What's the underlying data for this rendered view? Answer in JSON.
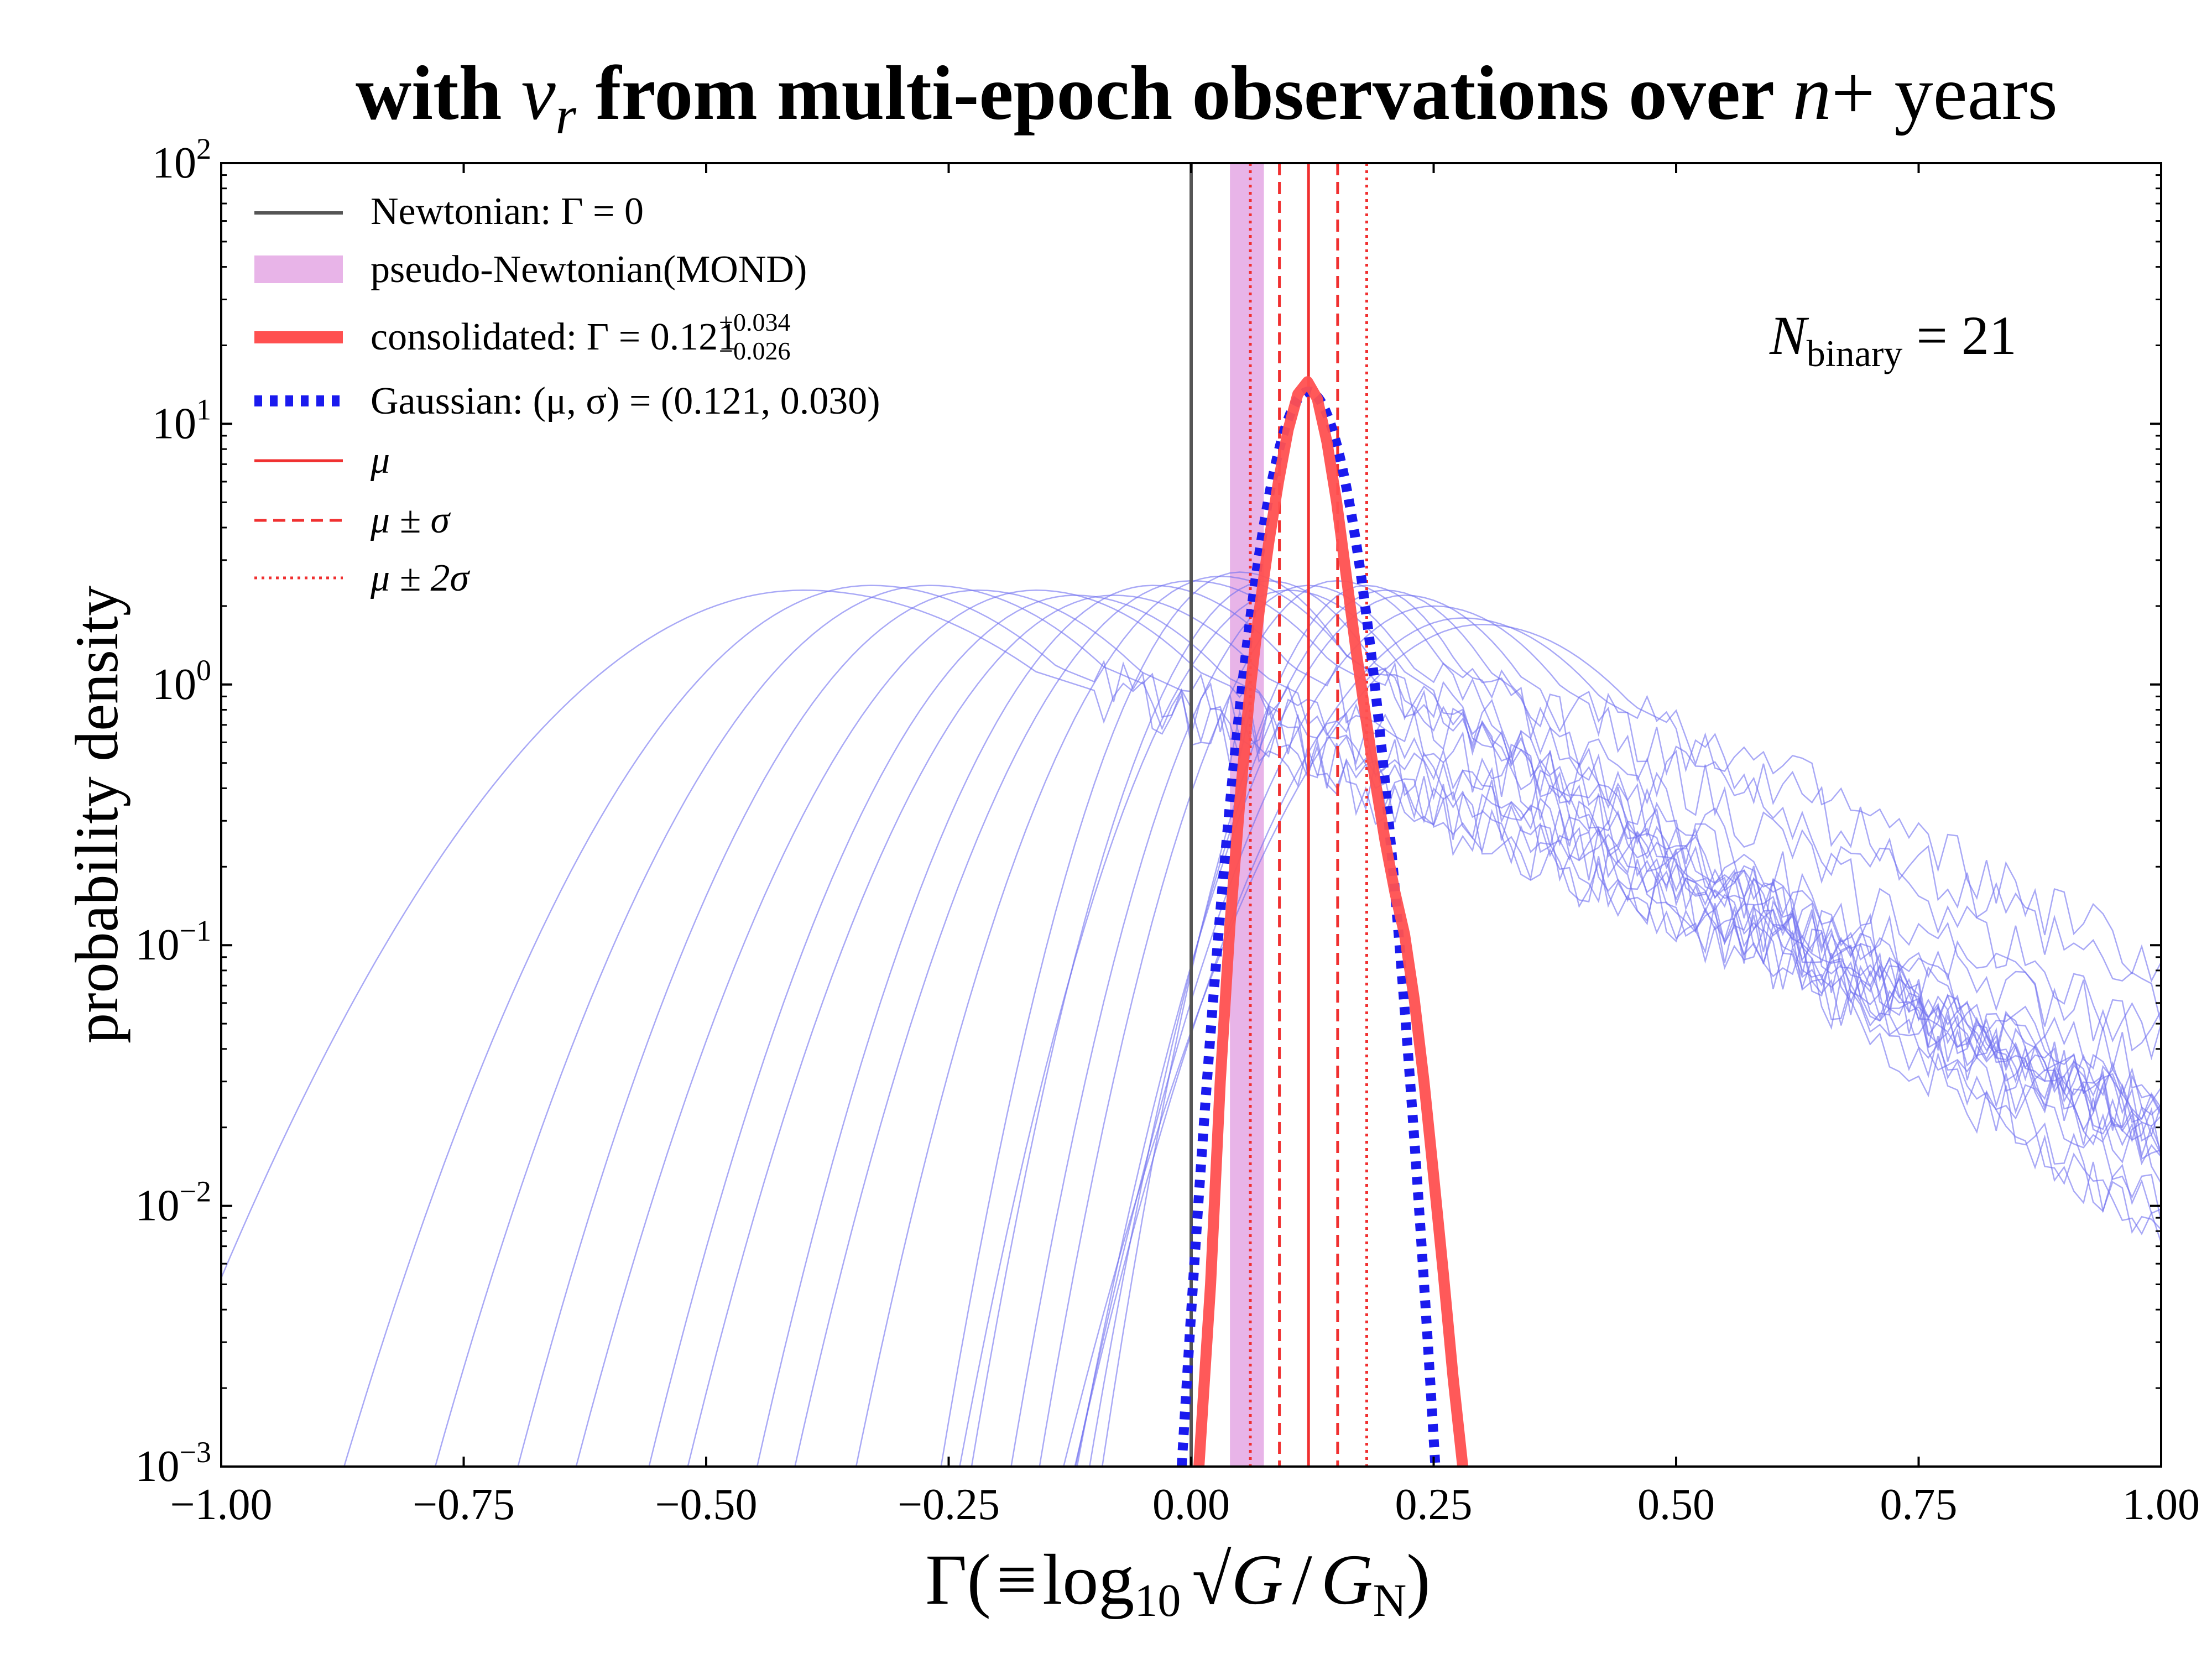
{
  "chart_data": {
    "type": "line",
    "title": {
      "pre": "with ",
      "var": "v",
      "var_sub": "r",
      "mid": " from multi-epoch observations over ",
      "var2": "n",
      "post": "+  years"
    },
    "xlabel": {
      "pre": "Γ(",
      "equiv": "≡",
      "log": "log",
      "log_sub": "10",
      "G": "G",
      "slash": "/",
      "GN": "G",
      "GN_sub": "N",
      "post": ")"
    },
    "ylabel": "probability density",
    "xlim": [
      -1.0,
      1.0
    ],
    "ylim": [
      0.001,
      100
    ],
    "yscale": "log",
    "x_ticks": [
      -1.0,
      -0.75,
      -0.5,
      -0.25,
      0.0,
      0.25,
      0.5,
      0.75,
      1.0
    ],
    "x_tick_labels": [
      "−1.00",
      "−0.75",
      "−0.50",
      "−0.25",
      "0.00",
      "0.25",
      "0.50",
      "0.75",
      "1.00"
    ],
    "y_ticks": [
      {
        "value": 100,
        "base": "10",
        "exp": "2"
      },
      {
        "value": 10,
        "base": "10",
        "exp": "1"
      },
      {
        "value": 1,
        "base": "10",
        "exp": "0"
      },
      {
        "value": 0.1,
        "base": "10",
        "exp": "−1"
      },
      {
        "value": 0.01,
        "base": "10",
        "exp": "−2"
      },
      {
        "value": 0.001,
        "base": "10",
        "exp": "−3"
      }
    ],
    "annotation": {
      "N": "N",
      "sub": "binary",
      "eq": " = 21"
    },
    "legend_position": "upper-left",
    "legend": [
      {
        "key": "newtonian",
        "label": "Newtonian: Γ = 0"
      },
      {
        "key": "mond",
        "label": "pseudo-Newtonian(MOND)"
      },
      {
        "key": "consolidated",
        "label_pre": "consolidated: Γ = 0.121",
        "sup": "+0.034",
        "sub": "−0.026"
      },
      {
        "key": "gaussian",
        "label": "Gaussian: (μ, σ) = (0.121, 0.030)"
      },
      {
        "key": "mu",
        "label": "μ"
      },
      {
        "key": "mu_sigma",
        "label": "μ ± σ"
      },
      {
        "key": "mu_2sigma",
        "label": "μ ± 2σ"
      }
    ],
    "colors": {
      "newtonian": "#555555",
      "mond": "#e8b4e8",
      "consolidated": "#ff5050",
      "gaussian": "#1a1aee",
      "individual": "#6f6ff0",
      "mu": "#f03030"
    },
    "newtonian_x": 0.0,
    "mond_band": [
      0.04,
      0.075
    ],
    "mu": 0.121,
    "sigma": 0.03,
    "gaussian_sigma": 0.03,
    "mu_sigma_lines": [
      0.091,
      0.151
    ],
    "mu_2sigma_lines": [
      0.061,
      0.181
    ],
    "consolidated": {
      "x": [
        0.008,
        0.02,
        0.03,
        0.04,
        0.05,
        0.06,
        0.07,
        0.08,
        0.09,
        0.1,
        0.11,
        0.12,
        0.13,
        0.14,
        0.15,
        0.16,
        0.17,
        0.18,
        0.19,
        0.2,
        0.21,
        0.22,
        0.23,
        0.24,
        0.25,
        0.26,
        0.27,
        0.28
      ],
      "y": [
        0.001,
        0.005,
        0.03,
        0.12,
        0.35,
        0.9,
        1.9,
        3.5,
        6.0,
        9.5,
        13.0,
        14.5,
        12.5,
        8.5,
        5.0,
        2.6,
        1.35,
        0.75,
        0.42,
        0.25,
        0.16,
        0.11,
        0.062,
        0.03,
        0.013,
        0.0055,
        0.0022,
        0.001
      ],
      "n_binary": 21
    },
    "individual_pdfs": [
      {
        "mu": -0.4,
        "sigma": 0.2,
        "peak": 2.3,
        "tail": 0.11
      },
      {
        "mu": -0.33,
        "sigma": 0.16,
        "peak": 2.4,
        "tail": 0.13
      },
      {
        "mu": -0.27,
        "sigma": 0.15,
        "peak": 2.4,
        "tail": 0.12
      },
      {
        "mu": -0.22,
        "sigma": 0.14,
        "peak": 2.3,
        "tail": 0.14
      },
      {
        "mu": -0.16,
        "sigma": 0.14,
        "peak": 2.3,
        "tail": 0.15
      },
      {
        "mu": -0.12,
        "sigma": 0.13,
        "peak": 2.2,
        "tail": 0.13
      },
      {
        "mu": -0.08,
        "sigma": 0.13,
        "peak": 2.2,
        "tail": 0.14
      },
      {
        "mu": -0.04,
        "sigma": 0.12,
        "peak": 2.4,
        "tail": 0.13
      },
      {
        "mu": 0.0,
        "sigma": 0.12,
        "peak": 2.5,
        "tail": 0.12
      },
      {
        "mu": 0.03,
        "sigma": 0.11,
        "peak": 2.6,
        "tail": 0.14
      },
      {
        "mu": 0.05,
        "sigma": 0.09,
        "peak": 2.7,
        "tail": 0.16
      },
      {
        "mu": 0.08,
        "sigma": 0.09,
        "peak": 2.5,
        "tail": 0.15
      },
      {
        "mu": 0.1,
        "sigma": 0.1,
        "peak": 2.3,
        "tail": 0.13
      },
      {
        "mu": 0.12,
        "sigma": 0.09,
        "peak": 2.4,
        "tail": 0.14
      },
      {
        "mu": 0.15,
        "sigma": 0.09,
        "peak": 2.5,
        "tail": 0.13
      },
      {
        "mu": 0.18,
        "sigma": 0.08,
        "peak": 2.4,
        "tail": 0.12
      },
      {
        "mu": 0.2,
        "sigma": 0.09,
        "peak": 2.3,
        "tail": 0.13
      },
      {
        "mu": 0.22,
        "sigma": 0.1,
        "peak": 2.2,
        "tail": 0.14
      },
      {
        "mu": 0.25,
        "sigma": 0.11,
        "peak": 2.0,
        "tail": 0.12
      },
      {
        "mu": 0.28,
        "sigma": 0.12,
        "peak": 1.8,
        "tail": 0.13
      },
      {
        "mu": 0.3,
        "sigma": 0.13,
        "peak": 1.7,
        "tail": 0.15
      }
    ]
  }
}
